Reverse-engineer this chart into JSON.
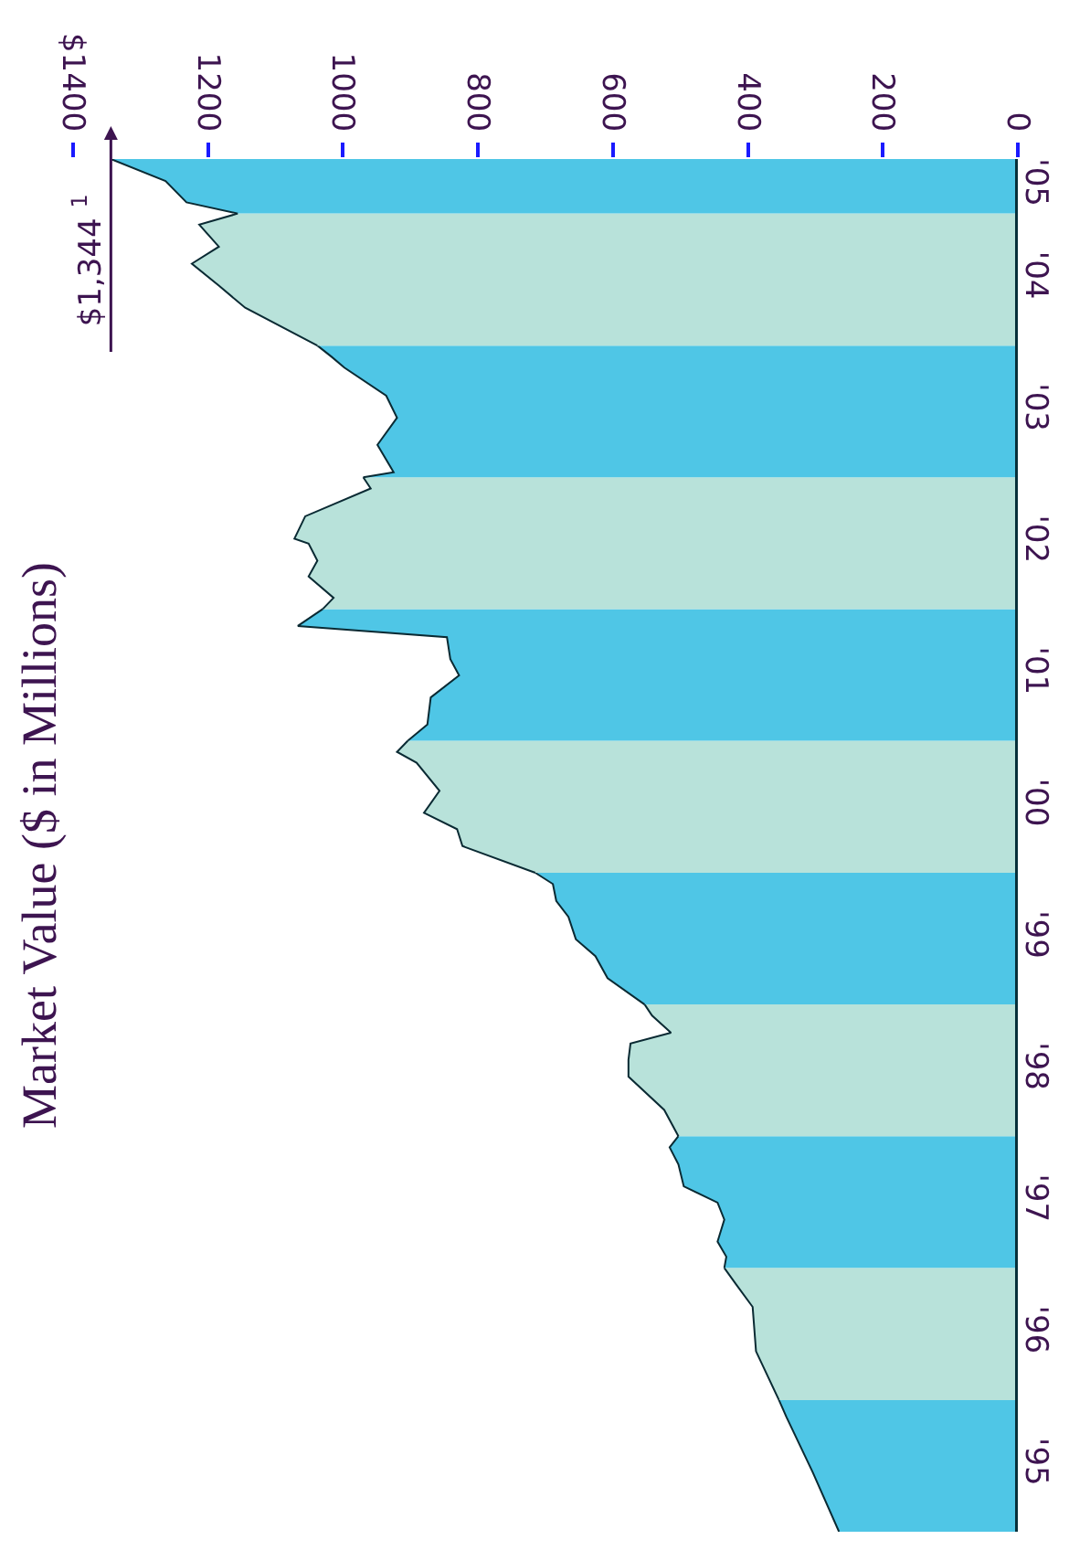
{
  "chart_data": {
    "type": "area",
    "orientation": "horizontal",
    "title": "Market Value ($ in Millions)",
    "annotations": [
      {
        "text": "$1,344 $^{1}$",
        "x": 1344,
        "y": "2005-06-01"
      }
    ],
    "xlim": [
      1400,
      0
    ],
    "xticks": [
      0,
      200,
      400,
      600,
      800,
      1000,
      1200,
      {
        "value": 1400,
        "label": "$1400"
      }
    ],
    "ylim": [
      "1995-01-01",
      "2005-06-01"
    ],
    "yticks": [
      {
        "value": "1995-07-01",
        "label": "'95"
      },
      {
        "value": "1996-07-01",
        "label": "'96"
      },
      {
        "value": "1997-07-01",
        "label": "'97"
      },
      {
        "value": "1998-07-01",
        "label": "'98"
      },
      {
        "value": "1999-07-01",
        "label": "'99"
      },
      {
        "value": "2000-07-01",
        "label": "'00"
      },
      {
        "value": "2001-07-01",
        "label": "'01"
      },
      {
        "value": "2002-07-01",
        "label": "'02"
      },
      {
        "value": "2003-07-01",
        "label": "'03"
      },
      {
        "value": "2004-07-01",
        "label": "'04"
      },
      {
        "value": "2005-03-15",
        "label": "'05"
      }
    ],
    "series": [
      {
        "color": "#4fc6e6",
        "x": [
          "1995-01-01",
          "1995-06-15",
          "1995-11-15",
          "1996-01-01"
        ],
        "values": [
          265,
          304,
          343,
          354
        ]
      },
      {
        "color": "#b8e2da",
        "x": [
          "1996-01-01",
          "1996-05-15",
          "1996-09-15",
          "1996-11-15",
          "1997-01-01"
        ],
        "values": [
          354,
          388,
          393,
          417,
          435
        ]
      },
      {
        "color": "#4fc6e6",
        "x": [
          "1997-01-01",
          "1997-02-01",
          "1997-03-15",
          "1997-05-15",
          "1997-07-01",
          "1997-08-15",
          "1997-10-15",
          "1997-12-01",
          "1998-01-01"
        ],
        "values": [
          435,
          432,
          445,
          435,
          445,
          495,
          503,
          516,
          503
        ]
      },
      {
        "color": "#b8e2da",
        "x": [
          "1998-01-01",
          "1998-03-15",
          "1998-06-15",
          "1998-08-01",
          "1998-09-15",
          "1998-10-15",
          "1998-12-01",
          "1999-01-01"
        ],
        "values": [
          503,
          524,
          577,
          577,
          574,
          514,
          542,
          553
        ]
      },
      {
        "color": "#4fc6e6",
        "x": [
          "1999-01-01",
          "1999-03-15",
          "1999-05-15",
          "1999-07-01",
          "1999-09-01",
          "1999-10-15",
          "1999-12-01",
          "2000-01-01"
        ],
        "values": [
          553,
          608,
          626,
          655,
          666,
          684,
          689,
          715
        ]
      },
      {
        "color": "#b8e2da",
        "x": [
          "2000-01-01",
          "2000-03-15",
          "2000-05-01",
          "2000-06-15",
          "2000-08-15",
          "2000-11-01",
          "2000-12-01",
          "2001-01-01"
        ],
        "values": [
          715,
          823,
          831,
          880,
          857,
          891,
          920,
          904
        ]
      },
      {
        "color": "#4fc6e6",
        "x": [
          "2001-01-01",
          "2001-02-15",
          "2001-05-01",
          "2001-07-01",
          "2001-08-15",
          "2001-10-15",
          "2001-11-15",
          "2002-01-01"
        ],
        "values": [
          904,
          875,
          870,
          828,
          841,
          846,
          1067,
          1030
        ]
      },
      {
        "color": "#b8e2da",
        "x": [
          "2002-01-01",
          "2002-02-01",
          "2002-04-01",
          "2002-05-15",
          "2002-07-01",
          "2002-07-15",
          "2002-09-15",
          "2002-12-01",
          "2003-01-01"
        ],
        "values": [
          1030,
          1014,
          1051,
          1038,
          1051,
          1072,
          1056,
          959,
          970
        ]
      },
      {
        "color": "#4fc6e6",
        "x": [
          "2003-01-01",
          "2003-01-15",
          "2003-04-01",
          "2003-06-15",
          "2003-08-15",
          "2003-11-01",
          "2003-12-01",
          "2004-01-01"
        ],
        "values": [
          970,
          925,
          949,
          920,
          936,
          998,
          1017,
          1038
        ]
      },
      {
        "color": "#b8e2da",
        "x": [
          "2004-01-01",
          "2004-04-15",
          "2004-06-15",
          "2004-08-15",
          "2004-10-01",
          "2004-12-01",
          "2005-01-01"
        ],
        "values": [
          1038,
          1145,
          1184,
          1224,
          1184,
          1213,
          1156
        ]
      },
      {
        "color": "#4fc6e6",
        "x": [
          "2005-01-01",
          "2005-02-01",
          "2005-04-01",
          "2005-06-01"
        ],
        "values": [
          1156,
          1232,
          1263,
          1344
        ]
      }
    ]
  }
}
